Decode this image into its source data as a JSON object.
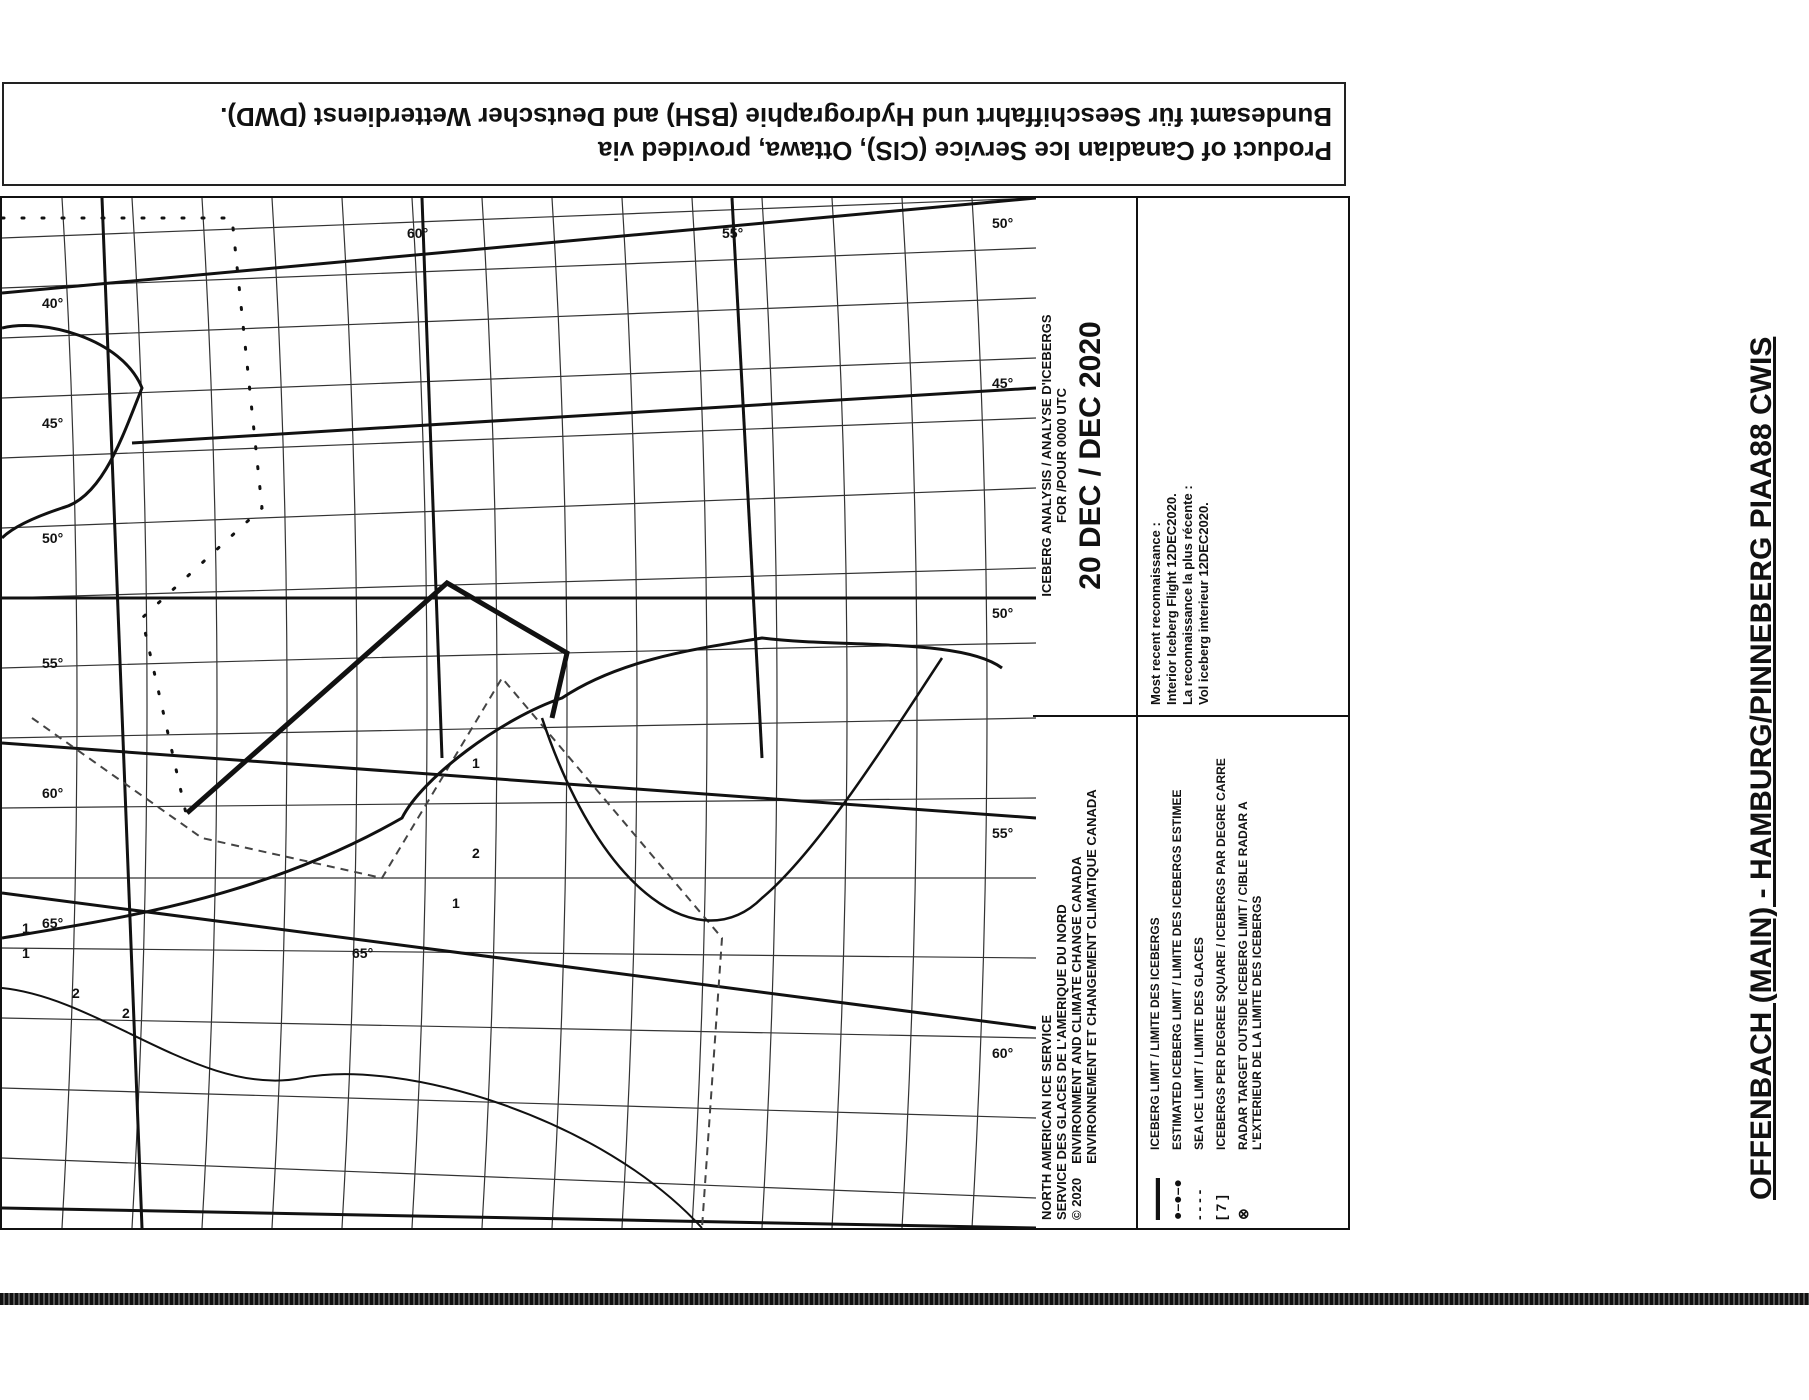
{
  "banner": {
    "line1": "Product of Canadian Ice Service (CIS), Ottawa, provided via",
    "line2": "Bundesamt für Seeschiffahrt und Hydrographie (BSH) and Deutscher Wetterdienst (DWD)."
  },
  "side_title": "OFFENBACH (MAIN) - HAMBURG/PINNEBERG PIAA88 CWIS",
  "map": {
    "left_labels": [
      "40°",
      "45°",
      "50°",
      "55°",
      "60°",
      "65°"
    ],
    "right_labels": [
      "50°",
      "45°",
      "50°",
      "55°",
      "60°"
    ],
    "inner_labels": [
      "60°",
      "55°",
      "65°"
    ],
    "counts": [
      "1",
      "2",
      "2",
      "1",
      "1",
      "1",
      "2"
    ]
  },
  "legend": {
    "agency": [
      "NORTH AMERICAN ICE SERVICE",
      "SERVICE DES GLACES DE L'AMERIQUE DU NORD",
      "ENVIRONMENT AND CLIMATE CHANGE CANADA",
      "ENVIRONNEMENT ET CHANGEMENT CLIMATIQUE CANADA"
    ],
    "copyright": "© 2020",
    "items": [
      {
        "symbol": "solid-line",
        "label": "ICEBERG LIMIT / LIMITE DES ICEBERGS"
      },
      {
        "symbol": "dot-line",
        "label": "ESTIMATED ICEBERG LIMIT / LIMITE DES ICEBERGS ESTIMEE"
      },
      {
        "symbol": "dashed-line",
        "label": "SEA ICE LIMIT / LIMITE DES GLACES"
      },
      {
        "symbol": "square",
        "label": "ICEBERGS PER DEGREE SQUARE / ICEBERGS PAR DEGRE CARRE"
      },
      {
        "symbol": "radar",
        "label": "RADAR TARGET OUTSIDE ICEBERG LIMIT / CIBLE RADAR A L'EXTERIEUR DE LA LIMITE DES ICEBERGS"
      }
    ],
    "title": "ICEBERG ANALYSIS / ANALYSE D'ICEBERGS",
    "subtitle": "FOR /POUR 0000 UTC",
    "date": "20 DEC / DEC 2020",
    "recon": [
      "Most recent reconnaissance :",
      "Interior Iceberg Flight 12DEC2020.",
      "La reconnaissance la plus récente :",
      "Vol iceberg interieur 12DEC2020."
    ]
  }
}
